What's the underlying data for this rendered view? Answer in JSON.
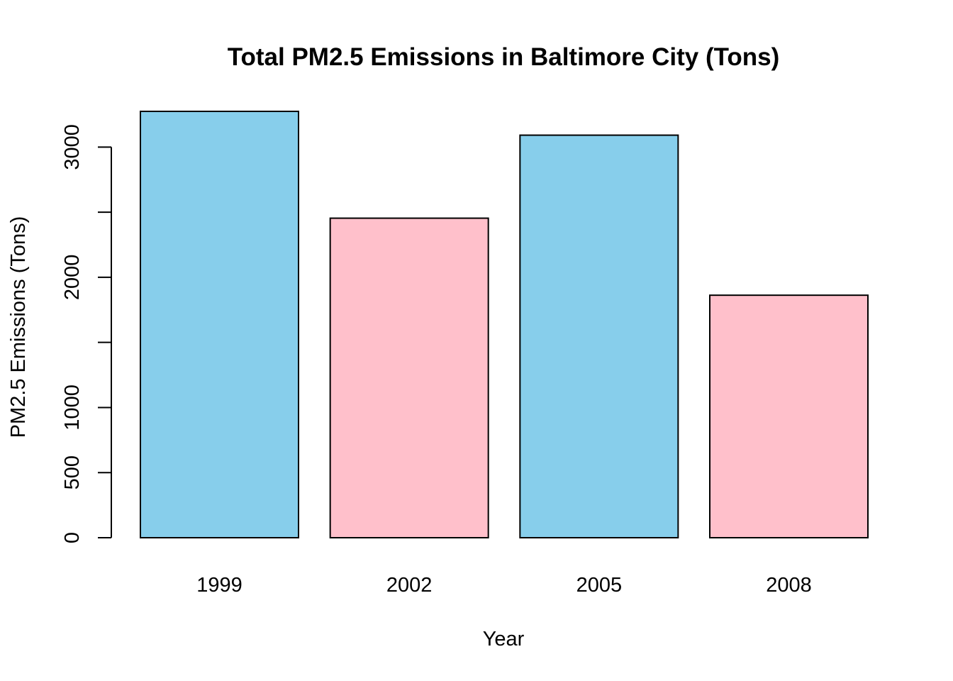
{
  "chart_data": {
    "type": "bar",
    "title": "Total PM2.5 Emissions in Baltimore City (Tons)",
    "xlabel": "Year",
    "ylabel": "PM2.5 Emissions (Tons)",
    "categories": [
      "1999",
      "2002",
      "2005",
      "2008"
    ],
    "values": [
      3274.2,
      2453.9,
      3091.4,
      1862.3
    ],
    "colors": [
      "#87CEEB",
      "#FFC0CB",
      "#87CEEB",
      "#FFC0CB"
    ],
    "ylim": [
      0,
      3274.2
    ],
    "yticks": [
      0,
      500,
      1000,
      1500,
      2000,
      2500,
      3000
    ],
    "ytick_labels": [
      "0",
      "500",
      "1000",
      "",
      "2000",
      "",
      "3000"
    ],
    "grid": false,
    "legend": "none"
  }
}
